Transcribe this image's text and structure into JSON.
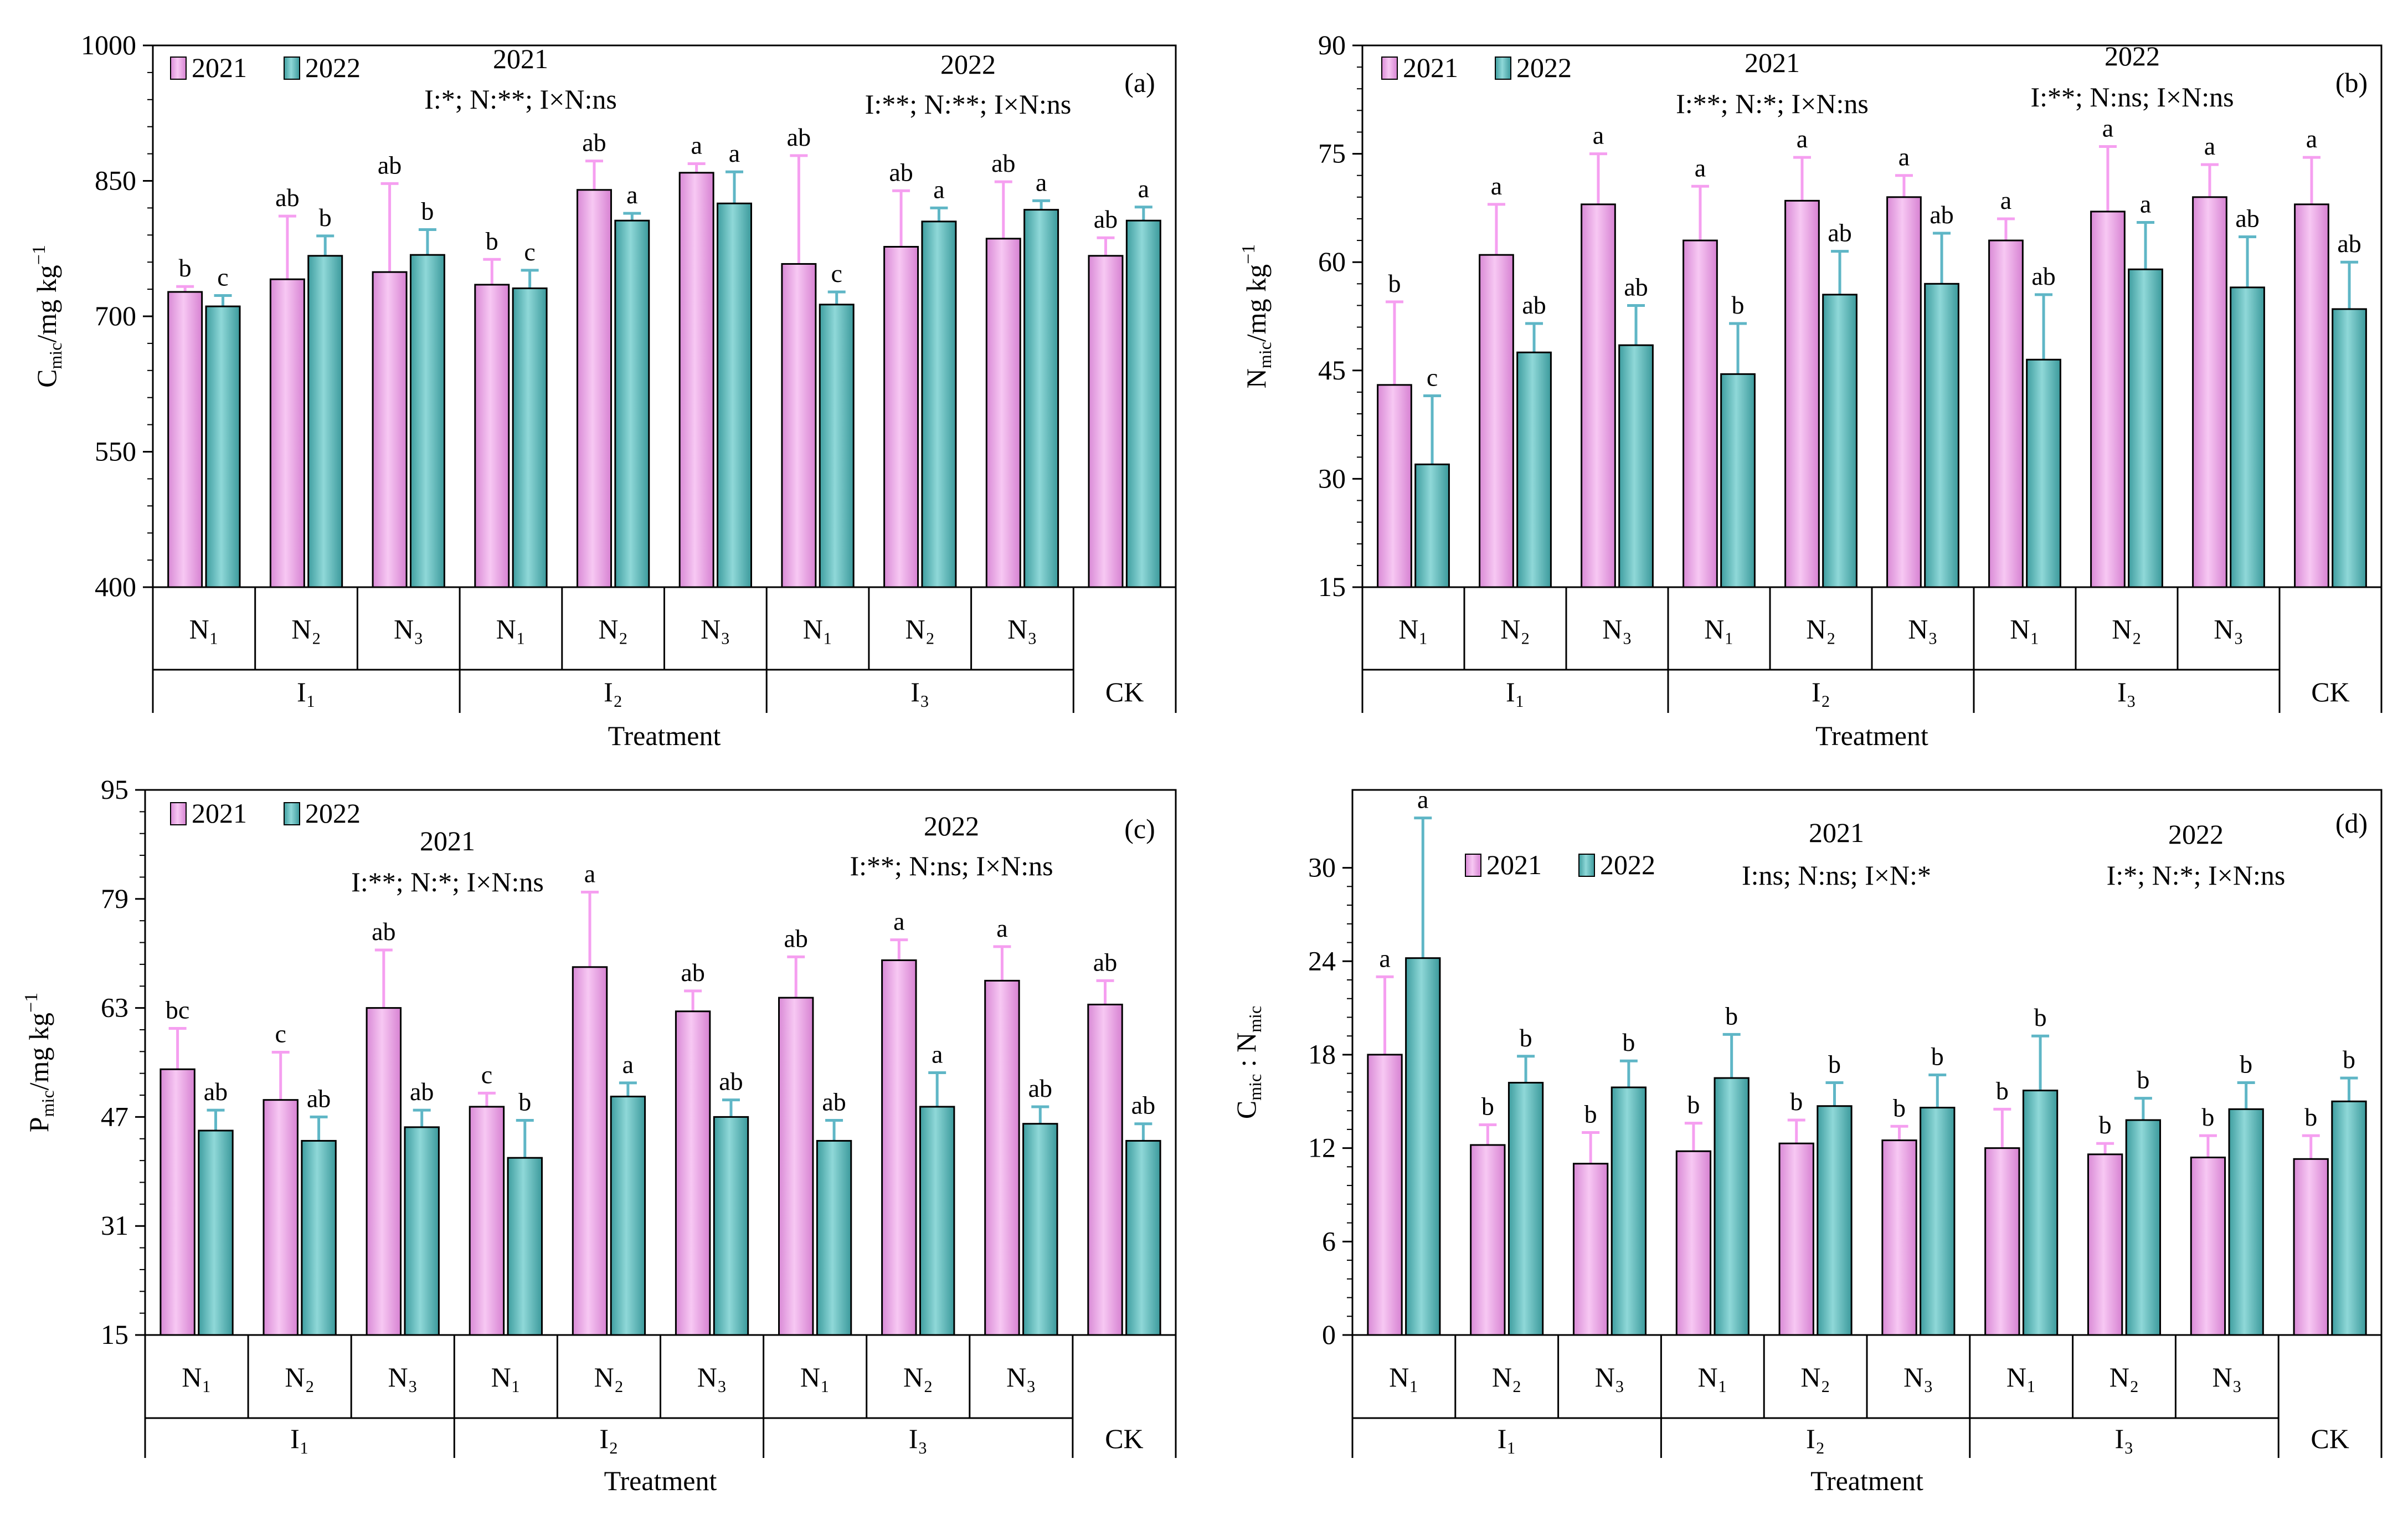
{
  "figure": {
    "x_group_label": "Treatment",
    "group_labels": [
      "I₁",
      "I₂",
      "I₃",
      "CK"
    ],
    "n_labels": [
      "N₁",
      "N₂",
      "N₃",
      "N₁",
      "N₂",
      "N₃",
      "N₁",
      "N₂",
      "N₃"
    ],
    "legend": [
      "2021",
      "2022"
    ],
    "colors": {
      "y2021": "#f3a8ee",
      "y2022": "#5fbfc0",
      "err2021": "#f59ff0",
      "err2022": "#5fb6c6"
    }
  },
  "chart_data": [
    {
      "id": "a",
      "type": "bar",
      "panel_label": "(a)",
      "ylabel": "C_mic/mg kg⁻¹",
      "ylabel_main": "C",
      "ylabel_sub": "mic",
      "ylabel_rest": "/mg kg",
      "ylabel_sup": "−1",
      "ylim": [
        400,
        1000
      ],
      "yticks": [
        400,
        550,
        700,
        850,
        1000
      ],
      "categories": [
        "I1N1",
        "I1N2",
        "I1N3",
        "I2N1",
        "I2N2",
        "I2N3",
        "I3N1",
        "I3N2",
        "I3N3",
        "CK"
      ],
      "series": [
        {
          "name": "2021",
          "values": [
            727,
            741,
            749,
            735,
            840,
            859,
            758,
            777,
            786,
            767
          ],
          "errors": [
            6,
            70,
            98,
            28,
            32,
            10,
            120,
            62,
            63,
            20
          ],
          "letters": [
            "b",
            "ab",
            "ab",
            "b",
            "ab",
            "a",
            "ab",
            "ab",
            "ab",
            "ab"
          ]
        },
        {
          "name": "2022",
          "values": [
            711,
            767,
            768,
            731,
            806,
            825,
            713,
            805,
            818,
            806
          ],
          "errors": [
            12,
            22,
            28,
            20,
            8,
            35,
            14,
            15,
            10,
            15
          ],
          "letters": [
            "c",
            "b",
            "b",
            "c",
            "a",
            "a",
            "c",
            "a",
            "a",
            "a"
          ]
        }
      ],
      "stats": [
        {
          "year": "2021",
          "text": "I:*; N:**; I×N:ns"
        },
        {
          "year": "2022",
          "text": "I:**; N:**; I×N:ns"
        }
      ]
    },
    {
      "id": "b",
      "type": "bar",
      "panel_label": "(b)",
      "ylabel": "N_mic/mg kg⁻¹",
      "ylabel_main": "N",
      "ylabel_sub": "mic",
      "ylabel_rest": "/mg kg",
      "ylabel_sup": "−1",
      "ylim": [
        15,
        90
      ],
      "yticks": [
        15,
        30,
        45,
        60,
        75,
        90
      ],
      "categories": [
        "I1N1",
        "I1N2",
        "I1N3",
        "I2N1",
        "I2N2",
        "I2N3",
        "I3N1",
        "I3N2",
        "I3N3",
        "CK"
      ],
      "series": [
        {
          "name": "2021",
          "values": [
            43,
            61,
            68,
            63,
            68.5,
            69,
            63,
            67,
            69,
            68
          ],
          "errors": [
            11.5,
            7,
            7,
            7.5,
            6,
            3,
            3,
            9,
            4.5,
            6.5
          ],
          "letters": [
            "b",
            "a",
            "a",
            "a",
            "a",
            "a",
            "a",
            "a",
            "a",
            "a"
          ]
        },
        {
          "name": "2022",
          "values": [
            32,
            47.5,
            48.5,
            44.5,
            55.5,
            57,
            46.5,
            59,
            56.5,
            53.5
          ],
          "errors": [
            9.5,
            4,
            5.5,
            7,
            6,
            7,
            9,
            6.5,
            7,
            6.5
          ],
          "letters": [
            "c",
            "ab",
            "ab",
            "b",
            "ab",
            "ab",
            "ab",
            "a",
            "ab",
            "ab"
          ]
        }
      ],
      "stats": [
        {
          "year": "2021",
          "text": "I:**; N:*; I×N:ns"
        },
        {
          "year": "2022",
          "text": "I:**; N:ns; I×N:ns"
        }
      ]
    },
    {
      "id": "c",
      "type": "bar",
      "panel_label": "(c)",
      "ylabel": "P_mic/mg kg⁻¹",
      "ylabel_main": "P",
      "ylabel_sub": "mic",
      "ylabel_rest": "/mg kg",
      "ylabel_sup": "−1",
      "ylim": [
        15,
        95
      ],
      "yticks": [
        15,
        31,
        47,
        63,
        79,
        95
      ],
      "categories": [
        "I1N1",
        "I1N2",
        "I1N3",
        "I2N1",
        "I2N2",
        "I2N3",
        "I3N1",
        "I3N2",
        "I3N3",
        "CK"
      ],
      "series": [
        {
          "name": "2021",
          "values": [
            54,
            49.5,
            63,
            48.5,
            69,
            62.5,
            64.5,
            70,
            67,
            63.5
          ],
          "errors": [
            6,
            7,
            8.5,
            2,
            11,
            3,
            6,
            3,
            5,
            3.5
          ],
          "letters": [
            "bc",
            "c",
            "ab",
            "c",
            "a",
            "ab",
            "ab",
            "a",
            "a",
            "ab"
          ]
        },
        {
          "name": "2022",
          "values": [
            45,
            43.5,
            45.5,
            41,
            50,
            47,
            43.5,
            48.5,
            46,
            43.5
          ],
          "errors": [
            3,
            3.5,
            2.5,
            5.5,
            2,
            2.5,
            3,
            5,
            2.5,
            2.5
          ],
          "letters": [
            "ab",
            "ab",
            "ab",
            "b",
            "a",
            "ab",
            "ab",
            "a",
            "ab",
            "ab"
          ]
        }
      ],
      "stats": [
        {
          "year": "2021",
          "text": "I:**; N:*; I×N:ns"
        },
        {
          "year": "2022",
          "text": "I:**; N:ns; I×N:ns"
        }
      ]
    },
    {
      "id": "d",
      "type": "bar",
      "panel_label": "(d)",
      "ylabel": "C_mic : N_mic",
      "ylabel_main": "C",
      "ylabel_sub": "mic",
      "ylabel_rest": " : N",
      "ylabel_sub2": "mic",
      "ylim": [
        0,
        35
      ],
      "yticks": [
        0,
        6,
        12,
        18,
        24,
        30
      ],
      "categories": [
        "I1N1",
        "I1N2",
        "I1N3",
        "I2N1",
        "I2N2",
        "I2N3",
        "I3N1",
        "I3N2",
        "I3N3",
        "CK"
      ],
      "series": [
        {
          "name": "2021",
          "values": [
            18,
            12.2,
            11,
            11.8,
            12.3,
            12.5,
            12,
            11.6,
            11.4,
            11.3
          ],
          "errors": [
            5,
            1.3,
            2,
            1.8,
            1.5,
            0.9,
            2.5,
            0.7,
            1.4,
            1.5
          ],
          "letters": [
            "a",
            "b",
            "b",
            "b",
            "b",
            "b",
            "b",
            "b",
            "b",
            "b"
          ]
        },
        {
          "name": "2022",
          "values": [
            24.2,
            16.2,
            15.9,
            16.5,
            14.7,
            14.6,
            15.7,
            13.8,
            14.5,
            15
          ],
          "errors": [
            9,
            1.7,
            1.7,
            2.8,
            1.5,
            2.1,
            3.5,
            1.4,
            1.7,
            1.5
          ],
          "letters": [
            "a",
            "b",
            "b",
            "b",
            "b",
            "b",
            "b",
            "b",
            "b",
            "b"
          ]
        }
      ],
      "stats": [
        {
          "year": "2021",
          "text": "I:ns; N:ns; I×N:*"
        },
        {
          "year": "2022",
          "text": "I:*; N:*; I×N:ns"
        }
      ]
    }
  ]
}
